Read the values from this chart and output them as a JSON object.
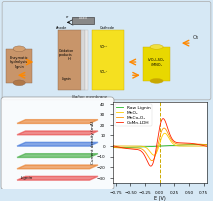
{
  "bg_color": "#d6e8f5",
  "fig_width": 2.13,
  "fig_height": 1.89,
  "cv_xlim": [
    -0.8,
    0.8
  ],
  "cv_ylim": [
    -35,
    42
  ],
  "cv_xlabel": "E (V)",
  "cv_ylabel": "Current density (mA)",
  "dashed_line_x": 0.0,
  "dashed_line_color": "#ccaa00",
  "legend_fontsize": 3.2,
  "tick_fontsize": 3.0
}
